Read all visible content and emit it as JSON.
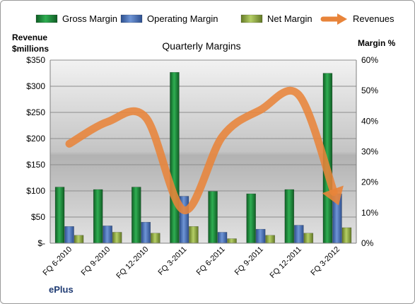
{
  "chart_data": {
    "type": "bar",
    "title": "Quarterly Margins",
    "brand": "ePlus",
    "y_left_label": [
      "Revenue",
      "$millions"
    ],
    "y_right_label": "Margin %",
    "y_left_ticks": [
      "$-",
      "$50",
      "$100",
      "$150",
      "$200",
      "$250",
      "$300",
      "$350"
    ],
    "y_right_ticks": [
      "0%",
      "10%",
      "20%",
      "30%",
      "40%",
      "50%",
      "60%"
    ],
    "ylim_left": [
      0,
      350
    ],
    "ylim_right": [
      0,
      60
    ],
    "categories": [
      "FQ 6-2010",
      "FQ 9-2010",
      "FQ 12-2010",
      "FQ 3-2011",
      "FQ 6-2011",
      "FQ 9-2011",
      "FQ 12-2011",
      "FQ 3-2012"
    ],
    "series": [
      {
        "name": "Gross Margin",
        "type": "bar",
        "axis": "right",
        "color": "#1e8a3a",
        "values": [
          18.4,
          17.6,
          18.4,
          56.0,
          17.0,
          16.2,
          17.6,
          55.7
        ]
      },
      {
        "name": "Operating Margin",
        "type": "bar",
        "axis": "right",
        "color": "#4a72b8",
        "values": [
          5.5,
          5.7,
          6.9,
          15.4,
          3.6,
          4.6,
          5.9,
          16.2
        ]
      },
      {
        "name": "Net Margin",
        "type": "bar",
        "axis": "right",
        "color": "#8caa3c",
        "values": [
          2.6,
          3.6,
          3.3,
          5.5,
          1.5,
          2.6,
          3.3,
          5.1
        ]
      },
      {
        "name": "Revenues",
        "type": "line",
        "axis": "left",
        "color": "#e8843a",
        "values": [
          190,
          232,
          240,
          63,
          204,
          255,
          283,
          80
        ]
      }
    ],
    "legend_position": "top",
    "grid": true
  }
}
